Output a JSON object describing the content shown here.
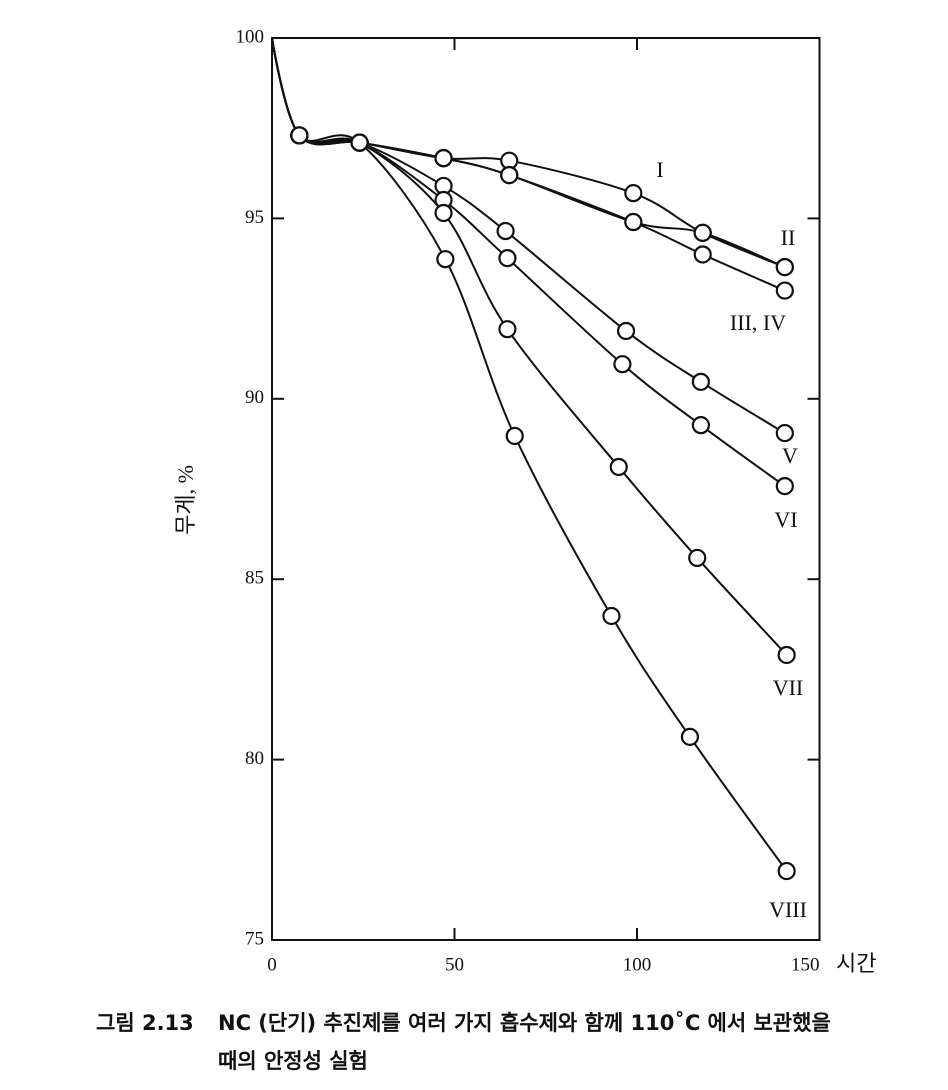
{
  "chart_data": {
    "type": "line",
    "x_label": "시간",
    "y_label": "무게, %",
    "caption_number": "그림 2.13",
    "caption_lines": [
      "NC (단기) 추진제를 여러 가지 흡수제와 함께 110˚C 에서 보관했을",
      "때의 안정성 실험"
    ],
    "xlim": [
      0,
      150
    ],
    "ylim": [
      75,
      100
    ],
    "xticks": [
      0,
      50,
      100,
      150
    ],
    "yticks": [
      75,
      80,
      85,
      90,
      95,
      100
    ],
    "color": "#111111",
    "series": [
      {
        "name": "I",
        "x": [
          0,
          7.5,
          24,
          47,
          65,
          99,
          118,
          140.5
        ],
        "values": [
          100,
          97.3,
          97.1,
          96.67,
          96.6,
          95.7,
          94.6,
          93.65
        ]
      },
      {
        "name": "II",
        "x": [
          0,
          7.5,
          24,
          47,
          65,
          99,
          118,
          140.5
        ],
        "values": [
          100,
          97.3,
          97.1,
          96.67,
          96.2,
          94.9,
          94.6,
          93.65
        ]
      },
      {
        "name": "III, IV",
        "x": [
          0,
          7.5,
          24,
          47,
          65,
          99,
          118,
          140.5
        ],
        "values": [
          100,
          97.3,
          97.1,
          96.67,
          96.2,
          94.9,
          94.0,
          93.0
        ]
      },
      {
        "name": "V",
        "x": [
          0,
          7.5,
          24,
          47,
          64,
          97,
          117.5,
          140.5
        ],
        "values": [
          100,
          97.3,
          97.1,
          95.9,
          94.65,
          91.88,
          90.47,
          89.05
        ]
      },
      {
        "name": "VI",
        "x": [
          0,
          7.5,
          24,
          47,
          64.5,
          96,
          117.5,
          140.5
        ],
        "values": [
          100,
          97.3,
          97.1,
          95.51,
          93.9,
          90.96,
          89.27,
          87.58
        ]
      },
      {
        "name": "VII",
        "x": [
          0,
          7.5,
          24,
          47,
          64.5,
          95,
          116.5,
          141
        ],
        "values": [
          100,
          97.3,
          97.1,
          95.15,
          91.93,
          88.11,
          85.59,
          82.9
        ]
      },
      {
        "name": "VIII",
        "x": [
          0,
          7.5,
          24,
          47.5,
          66.5,
          93,
          114.5,
          141
        ],
        "values": [
          100,
          97.3,
          97.1,
          93.87,
          88.97,
          83.98,
          80.63,
          76.91
        ]
      }
    ]
  }
}
